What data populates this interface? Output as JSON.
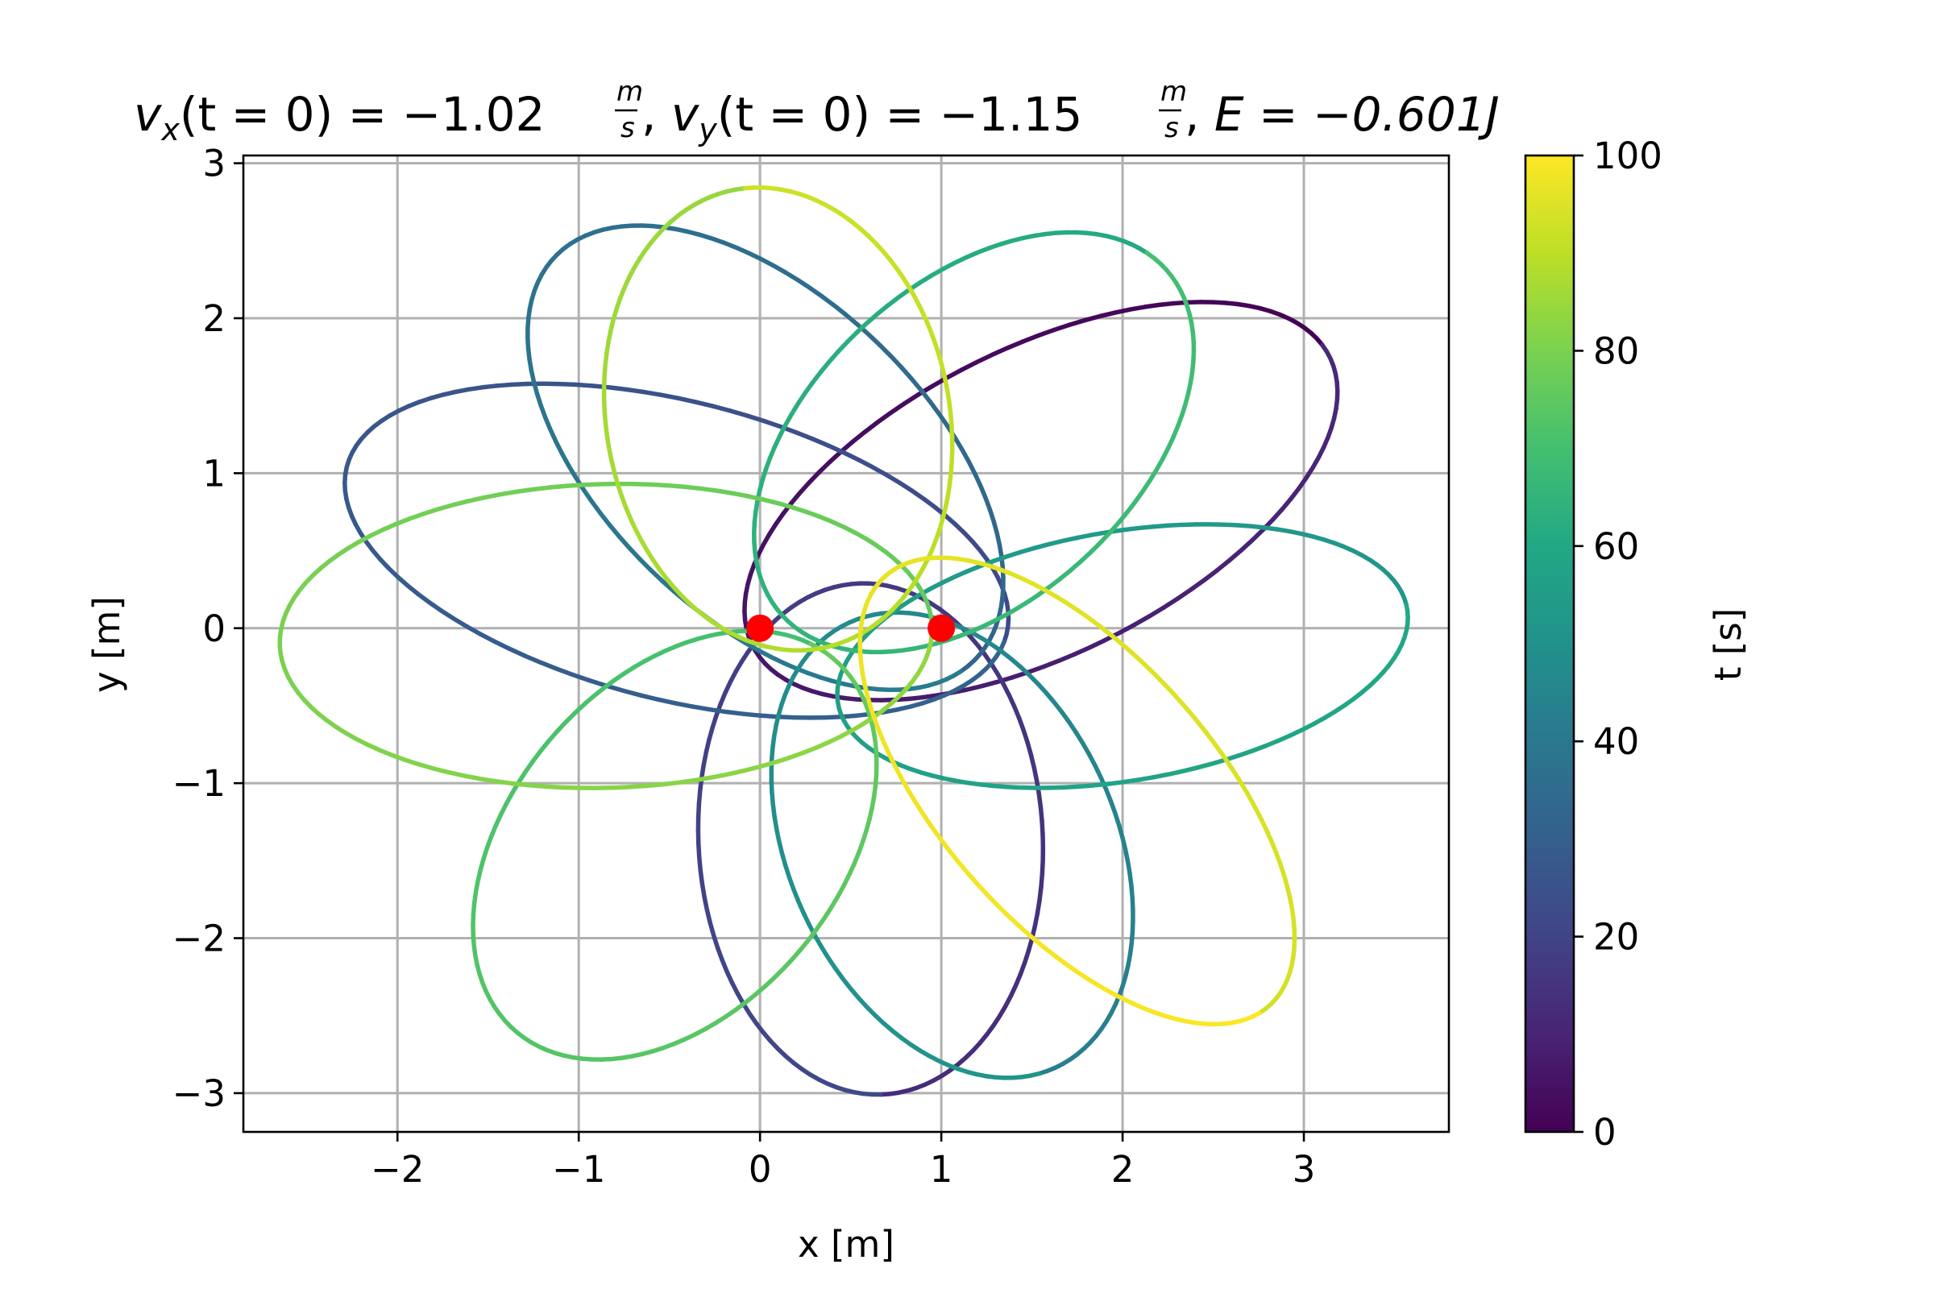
{
  "chart_data": {
    "type": "line",
    "title": {
      "vx_label": "v",
      "vx_sub": "x",
      "vx_value": "(t = 0) = −1.02",
      "vy_label": "v",
      "vy_sub": "y",
      "vy_value": "(t = 0) = −1.15",
      "unit_num": "m",
      "unit_den": "s",
      "sep": ", ",
      "energy": "E = −0.601J"
    },
    "xlabel": "x [m]",
    "ylabel": "y [m]",
    "xlim": [
      -2.85,
      3.8
    ],
    "ylim": [
      -3.25,
      3.05
    ],
    "xticks": [
      -2,
      -1,
      0,
      1,
      2,
      3
    ],
    "yticks": [
      -3,
      -2,
      -1,
      0,
      1,
      2,
      3
    ],
    "xtick_labels": [
      "−2",
      "−1",
      "0",
      "1",
      "2",
      "3"
    ],
    "ytick_labels": [
      "−3",
      "−2",
      "−1",
      "0",
      "1",
      "2",
      "3"
    ],
    "grid": true,
    "colorbar": {
      "label": "t [s]",
      "range": [
        0,
        100
      ],
      "ticks": [
        0,
        20,
        40,
        60,
        80,
        100
      ],
      "tick_labels": [
        "0",
        "20",
        "40",
        "60",
        "80",
        "100"
      ],
      "colormap": "viridis"
    },
    "fixed_points": [
      {
        "x": 0,
        "y": 0,
        "color": "#ff0000"
      },
      {
        "x": 1,
        "y": 0,
        "color": "#ff0000"
      }
    ],
    "trajectory": {
      "t_range": [
        0,
        100
      ],
      "lobes": [
        {
          "center": [
            1.55,
            0.82
          ],
          "a": 1.85,
          "b": 0.95,
          "angle_deg": 33,
          "t": [
            0,
            12
          ]
        },
        {
          "center": [
            0.61,
            -1.36
          ],
          "a": 1.65,
          "b": 0.95,
          "angle_deg": -88,
          "t": [
            12,
            22
          ]
        },
        {
          "center": [
            -0.46,
            0.5
          ],
          "a": 1.9,
          "b": 0.95,
          "angle_deg": -18,
          "t": [
            22,
            32
          ]
        },
        {
          "center": [
            0.03,
            1.1
          ],
          "a": 1.75,
          "b": 0.95,
          "angle_deg": -52,
          "t": [
            32,
            42
          ]
        },
        {
          "center": [
            1.06,
            -1.4
          ],
          "a": 1.55,
          "b": 0.92,
          "angle_deg": -72,
          "t": [
            42,
            52
          ]
        },
        {
          "center": [
            2.0,
            -0.18
          ],
          "a": 1.6,
          "b": 0.8,
          "angle_deg": 12,
          "t": [
            52,
            60
          ]
        },
        {
          "center": [
            1.18,
            1.2
          ],
          "a": 1.55,
          "b": 0.95,
          "angle_deg": 52,
          "t": [
            60,
            70
          ]
        },
        {
          "center": [
            -0.47,
            -1.4
          ],
          "a": 1.5,
          "b": 0.95,
          "angle_deg": 60,
          "t": [
            70,
            76
          ]
        },
        {
          "center": [
            -0.85,
            -0.05
          ],
          "a": 1.8,
          "b": 0.98,
          "angle_deg": 2,
          "t": [
            76,
            84
          ]
        },
        {
          "center": [
            0.1,
            1.35
          ],
          "a": 1.5,
          "b": 0.95,
          "angle_deg": 97,
          "t": [
            84,
            93
          ]
        },
        {
          "center": [
            1.75,
            -1.05
          ],
          "a": 1.75,
          "b": 0.8,
          "angle_deg": -55,
          "t": [
            93,
            100
          ]
        }
      ]
    }
  }
}
